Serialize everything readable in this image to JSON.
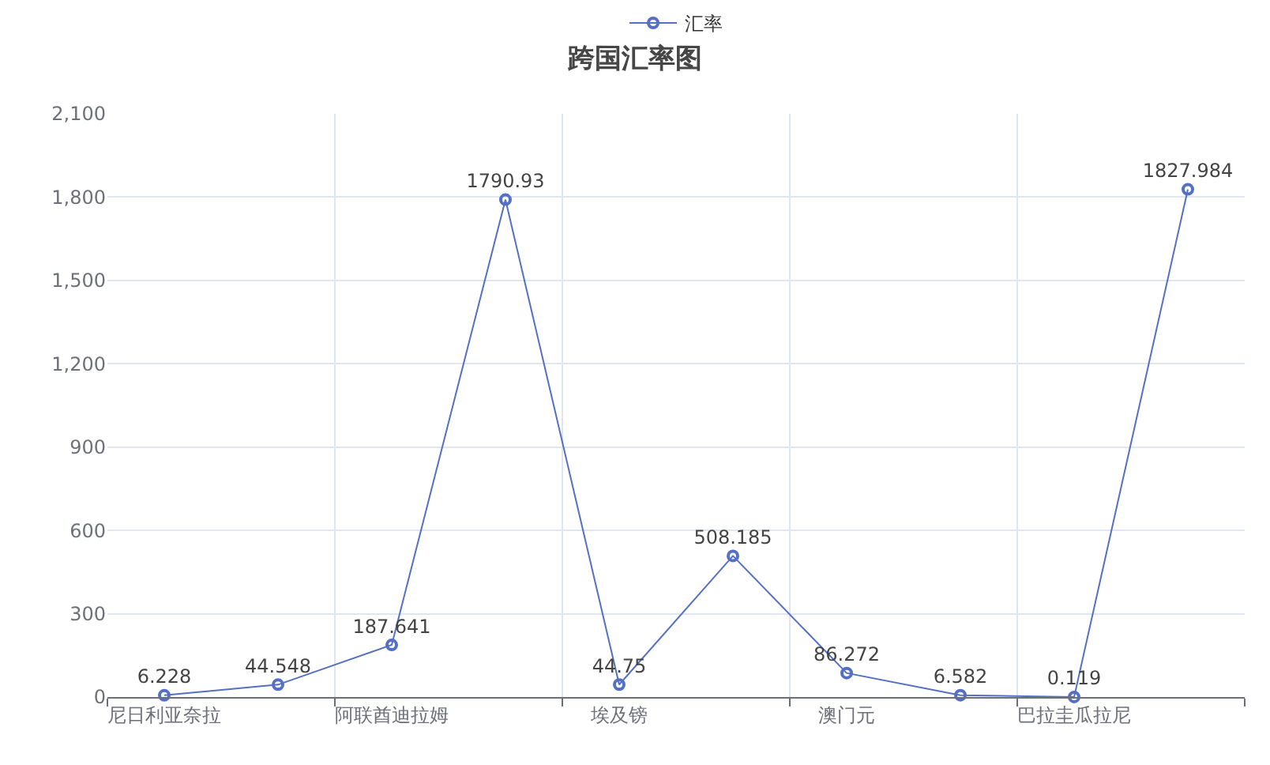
{
  "chart_data": {
    "type": "line",
    "title": "跨国汇率图",
    "categories": [
      "尼日利亚奈拉",
      null,
      "阿联酋迪拉姆",
      null,
      "埃及镑",
      null,
      "澳门元",
      null,
      "巴拉圭瓜拉尼",
      null
    ],
    "series": [
      {
        "name": "汇率",
        "color": "#5470c6",
        "values": [
          6.228,
          44.548,
          187.641,
          1790.93,
          44.75,
          508.185,
          86.272,
          6.582,
          0.119,
          1827.984
        ]
      }
    ],
    "ylim": [
      0,
      2100
    ],
    "yticks": [
      0,
      300,
      600,
      900,
      {
        "value": 1200,
        "label": "1,200"
      },
      {
        "value": 1500,
        "label": "1,500"
      },
      {
        "value": 1800,
        "label": "1,800"
      },
      {
        "value": 2100,
        "label": "2,100"
      }
    ],
    "grid": true,
    "legend": "top",
    "marker": "circle",
    "line_style": "solid",
    "data_labels": true
  }
}
